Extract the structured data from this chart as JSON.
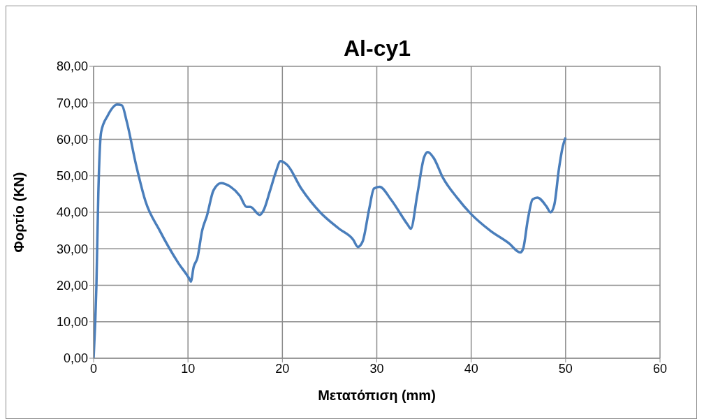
{
  "chart_data": {
    "type": "line",
    "title": "Al-cy1",
    "xlabel": "Μετατόπιση (mm)",
    "ylabel": "Φορτίο (KN)",
    "xlim": [
      0,
      60
    ],
    "xticks": [
      0,
      10,
      20,
      30,
      40,
      50,
      60
    ],
    "ylim": [
      0,
      80
    ],
    "yticks": [
      {
        "value": 0,
        "label": "0,00"
      },
      {
        "value": 10,
        "label": "10,00"
      },
      {
        "value": 20,
        "label": "20,00"
      },
      {
        "value": 30,
        "label": "30,00"
      },
      {
        "value": 40,
        "label": "40,00"
      },
      {
        "value": 50,
        "label": "50,00"
      },
      {
        "value": 60,
        "label": "60,00"
      },
      {
        "value": 70,
        "label": "70,00"
      },
      {
        "value": 80,
        "label": "80,00"
      }
    ],
    "grid": true,
    "marker": "none",
    "line_style": "solid",
    "series": [
      {
        "color": "#4a7ebb",
        "x": [
          0,
          0.3,
          0.5,
          0.8,
          1.5,
          2.5,
          3,
          3.5,
          4.5,
          5.5,
          7,
          9,
          10.2,
          10.3,
          10.6,
          11,
          11.5,
          12,
          12.7,
          13.5,
          14.5,
          15.5,
          16.2,
          16.6,
          17.6,
          18,
          18.7,
          19.3,
          19.8,
          20.5,
          22,
          24,
          26,
          27.5,
          28,
          28.5,
          29.2,
          29.7,
          30.3,
          31.5,
          33.3,
          33.6,
          34.3,
          35,
          35.4,
          36,
          37,
          38.5,
          40,
          42,
          44,
          45.2,
          45.5,
          46,
          46.5,
          47,
          48,
          48.4,
          48.8,
          49.3,
          49.7,
          50
        ],
        "values": [
          0,
          20,
          45,
          62,
          66.5,
          69.5,
          69.3,
          65,
          53,
          43,
          35,
          26,
          21.5,
          21,
          25,
          27.5,
          35,
          39,
          46,
          48,
          47,
          44.5,
          41.5,
          41.5,
          39.3,
          40.5,
          46,
          51,
          54,
          53,
          46.5,
          40,
          35.5,
          32.5,
          30.5,
          32,
          41,
          46.5,
          47,
          43.5,
          36.5,
          35.5,
          45,
          55,
          56.5,
          55,
          49.5,
          44,
          39.5,
          35,
          31.5,
          29,
          30,
          38,
          43.5,
          44,
          41.5,
          40,
          42,
          52,
          58,
          60.5
        ]
      }
    ]
  }
}
